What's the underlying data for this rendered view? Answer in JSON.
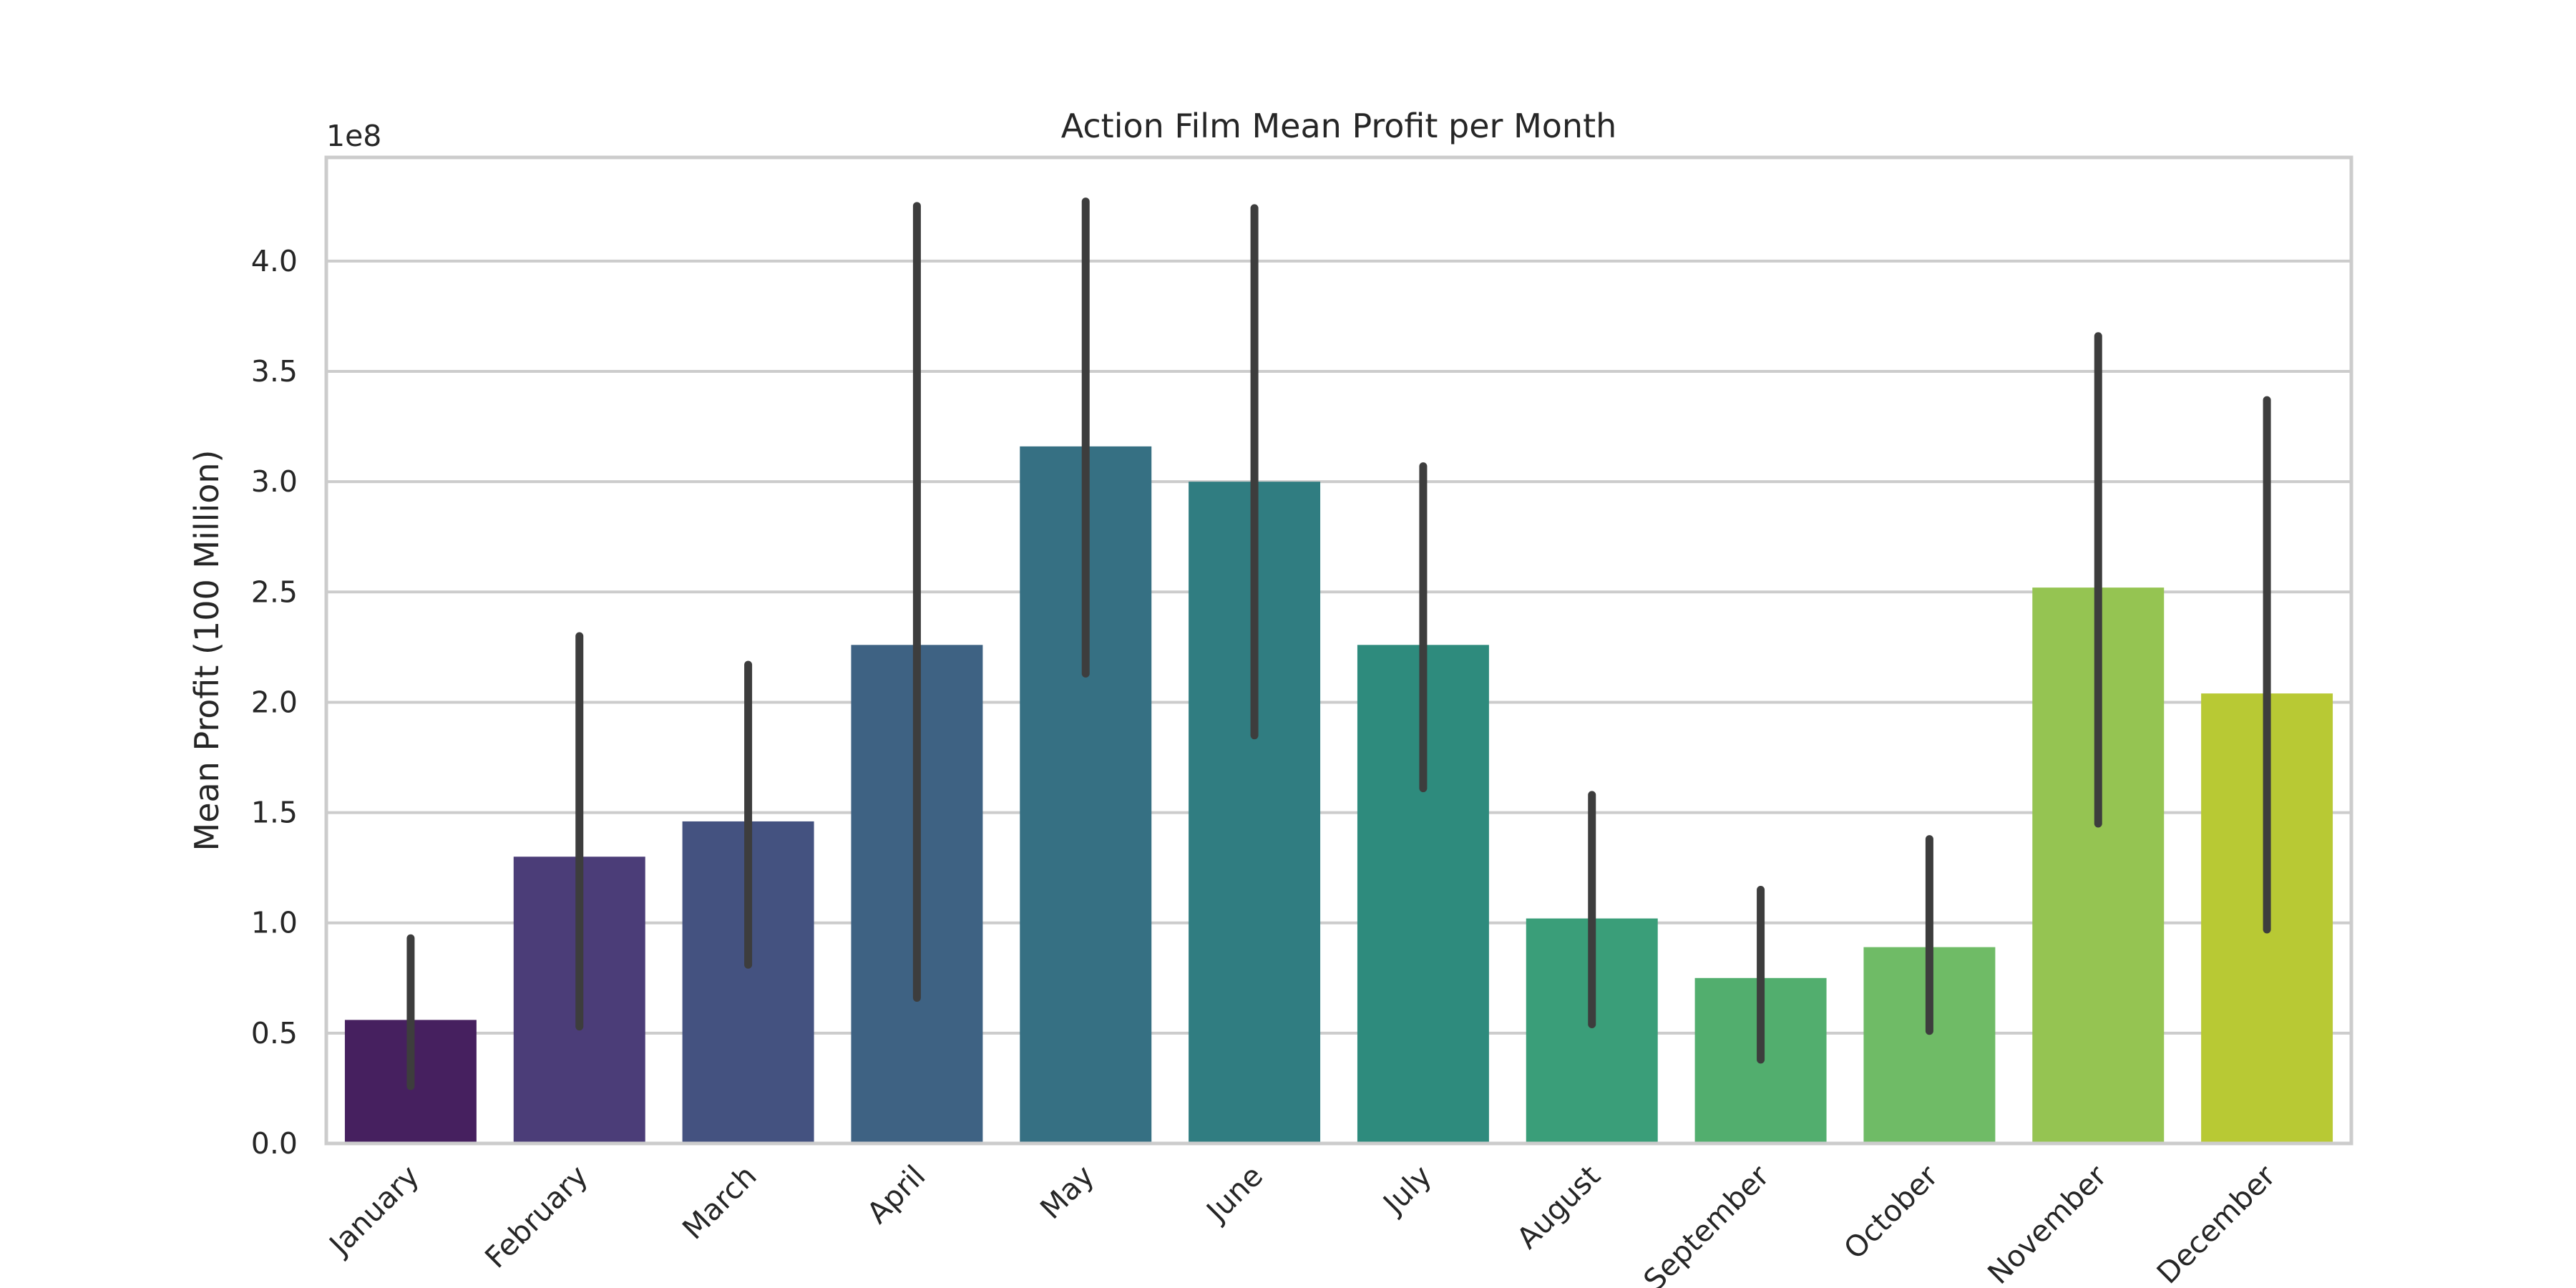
{
  "chart_data": {
    "type": "bar",
    "title": "Action Film Mean Profit per Month",
    "xlabel": "",
    "ylabel": "Mean Profit (100 Million)",
    "y_offset_label": "1e8",
    "categories": [
      "January",
      "February",
      "March",
      "April",
      "May",
      "June",
      "July",
      "August",
      "September",
      "October",
      "November",
      "December"
    ],
    "values": [
      0.56,
      1.3,
      1.46,
      2.26,
      3.16,
      3.0,
      2.26,
      1.02,
      0.75,
      0.89,
      2.52,
      2.04
    ],
    "error_low": [
      0.26,
      0.53,
      0.81,
      0.66,
      2.13,
      1.85,
      1.61,
      0.54,
      0.38,
      0.51,
      1.45,
      0.97
    ],
    "error_high": [
      0.93,
      2.3,
      2.17,
      4.25,
      4.27,
      4.24,
      3.07,
      1.58,
      1.15,
      1.38,
      3.66,
      3.37
    ],
    "colors": [
      "#46205f",
      "#4b3d78",
      "#445280",
      "#3e6283",
      "#367083",
      "#307d81",
      "#2e8b7d",
      "#3a9e79",
      "#52ae6e",
      "#6fbb66",
      "#95c452",
      "#b8c934"
    ],
    "error_color": "#3d3d3d",
    "ylim": [
      0,
      4.47
    ],
    "yticks": [
      "0.0",
      "0.5",
      "1.0",
      "1.5",
      "2.0",
      "2.5",
      "3.0",
      "3.5",
      "4.0"
    ],
    "grid": true,
    "legend": "none"
  }
}
